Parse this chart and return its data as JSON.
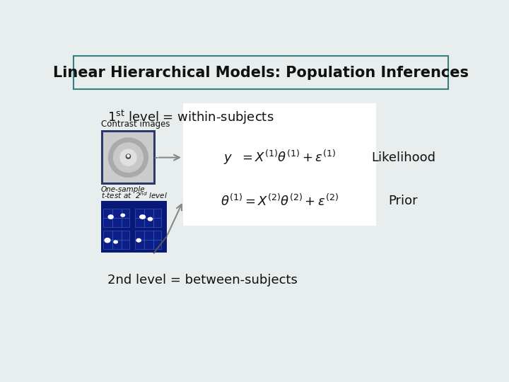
{
  "title": "Linear Hierarchical Models: Population Inferences",
  "bg_color": "#e8eded",
  "title_box_edge": "#3a8080",
  "title_fontsize": 15,
  "title_color": "#111111",
  "level2_text": "2nd level = between-subjects",
  "contrast_label": "Contrast images",
  "likelihood_label": "Likelihood",
  "prior_label": "Prior",
  "eq1": "$y\\ \\ = X^{(1)}\\theta^{(1)} + \\varepsilon^{(1)}$",
  "eq2": "$\\theta^{(1)} = X^{(2)}\\theta^{(2)} + \\varepsilon^{(2)}$",
  "font_color": "#111111",
  "small_font": 7.5,
  "med_font": 13,
  "label_font": 13,
  "eq_font": 13
}
